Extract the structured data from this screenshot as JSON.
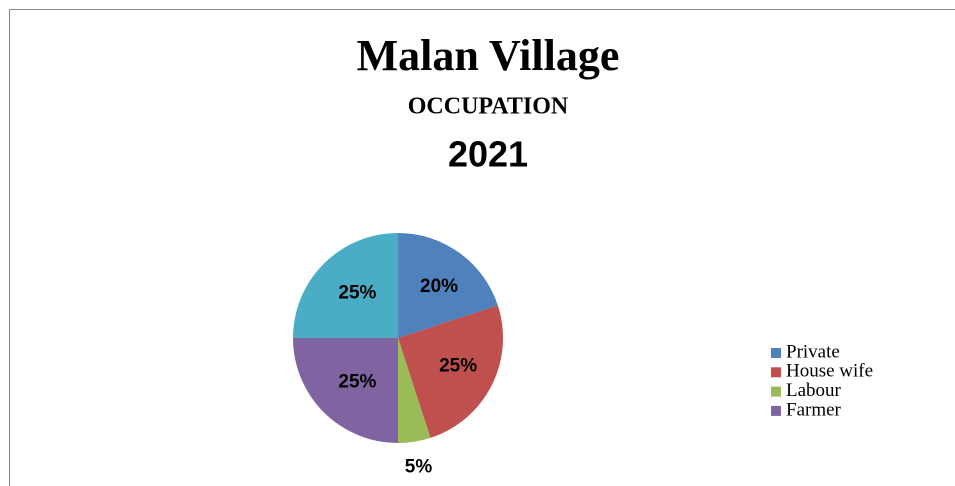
{
  "chart_data": {
    "type": "pie",
    "title": "Malan Village",
    "subtitle": "OCCUPATION",
    "year": "2021",
    "categories": [
      "Private",
      "House wife",
      "Labour",
      "Farmer",
      null
    ],
    "values": [
      20,
      25,
      5,
      25,
      25
    ],
    "value_labels": [
      "20%",
      "25%",
      "5%",
      "25%",
      "25%"
    ],
    "colors": [
      "#4f81bd",
      "#c0504d",
      "#9bbb59",
      "#8064a2",
      "#4bacc6"
    ],
    "legend": "right"
  }
}
